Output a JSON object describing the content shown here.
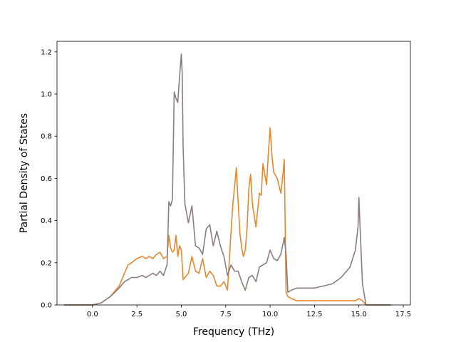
{
  "chart_data": {
    "type": "line",
    "title": "",
    "xlabel": "Frequency (THz)",
    "ylabel": "Partial Density of States",
    "xlim": [
      -2.0,
      17.9
    ],
    "ylim": [
      0.0,
      1.25
    ],
    "xticks": [
      0.0,
      2.5,
      5.0,
      7.5,
      10.0,
      12.5,
      15.0,
      17.5
    ],
    "xtick_labels": [
      "0.0",
      "2.5",
      "5.0",
      "7.5",
      "10.0",
      "12.5",
      "15.0",
      "17.5"
    ],
    "yticks": [
      0.0,
      0.2,
      0.4,
      0.6,
      0.8,
      1.0,
      1.2
    ],
    "ytick_labels": [
      "0.0",
      "0.2",
      "0.4",
      "0.6",
      "0.8",
      "1.0",
      "1.2"
    ],
    "grid": false,
    "legend": "none",
    "series": [
      {
        "color": "#e8862a",
        "x": [
          -1.6,
          0.0,
          0.5,
          1.0,
          1.5,
          1.8,
          2.0,
          2.2,
          2.5,
          2.8,
          3.0,
          3.2,
          3.4,
          3.6,
          3.8,
          4.0,
          4.2,
          4.3,
          4.4,
          4.5,
          4.6,
          4.7,
          4.8,
          4.9,
          5.0,
          5.1,
          5.2,
          5.4,
          5.6,
          5.8,
          6.0,
          6.2,
          6.4,
          6.6,
          6.8,
          7.0,
          7.2,
          7.4,
          7.6,
          7.8,
          7.9,
          8.0,
          8.1,
          8.2,
          8.3,
          8.4,
          8.5,
          8.6,
          8.7,
          8.8,
          8.9,
          9.0,
          9.2,
          9.4,
          9.5,
          9.6,
          9.8,
          9.9,
          10.0,
          10.1,
          10.2,
          10.4,
          10.6,
          10.7,
          10.8,
          10.9,
          11.0,
          11.2,
          11.5,
          12.0,
          12.5,
          13.0,
          13.5,
          14.0,
          14.5,
          14.8,
          15.0,
          15.2,
          15.4,
          16.8
        ],
        "y": [
          0.0,
          0.0,
          0.01,
          0.04,
          0.09,
          0.15,
          0.19,
          0.2,
          0.22,
          0.23,
          0.22,
          0.23,
          0.22,
          0.24,
          0.25,
          0.22,
          0.23,
          0.33,
          0.27,
          0.25,
          0.26,
          0.33,
          0.23,
          0.28,
          0.26,
          0.12,
          0.13,
          0.15,
          0.23,
          0.16,
          0.15,
          0.22,
          0.13,
          0.16,
          0.14,
          0.09,
          0.09,
          0.11,
          0.07,
          0.35,
          0.48,
          0.56,
          0.65,
          0.49,
          0.34,
          0.27,
          0.23,
          0.26,
          0.36,
          0.55,
          0.62,
          0.48,
          0.37,
          0.53,
          0.52,
          0.67,
          0.57,
          0.72,
          0.84,
          0.71,
          0.63,
          0.6,
          0.53,
          0.6,
          0.69,
          0.06,
          0.04,
          0.03,
          0.02,
          0.02,
          0.02,
          0.02,
          0.02,
          0.02,
          0.02,
          0.02,
          0.03,
          0.02,
          0.0,
          0.0
        ]
      },
      {
        "color": "#8a7d7d",
        "x": [
          -1.6,
          0.0,
          0.5,
          1.0,
          1.5,
          1.8,
          2.0,
          2.2,
          2.5,
          2.8,
          3.0,
          3.2,
          3.4,
          3.6,
          3.8,
          4.0,
          4.2,
          4.3,
          4.4,
          4.5,
          4.6,
          4.7,
          4.8,
          4.9,
          5.0,
          5.05,
          5.1,
          5.2,
          5.4,
          5.6,
          5.8,
          6.0,
          6.2,
          6.4,
          6.6,
          6.8,
          7.0,
          7.2,
          7.4,
          7.6,
          7.8,
          8.0,
          8.2,
          8.4,
          8.6,
          8.8,
          9.0,
          9.2,
          9.4,
          9.6,
          9.8,
          10.0,
          10.2,
          10.4,
          10.6,
          10.8,
          10.9,
          11.0,
          11.2,
          11.5,
          12.0,
          12.5,
          13.0,
          13.5,
          14.0,
          14.5,
          14.8,
          14.95,
          15.0,
          15.1,
          15.2,
          15.4,
          16.8
        ],
        "y": [
          0.0,
          0.0,
          0.01,
          0.04,
          0.08,
          0.11,
          0.12,
          0.13,
          0.13,
          0.14,
          0.13,
          0.14,
          0.15,
          0.14,
          0.16,
          0.14,
          0.19,
          0.49,
          0.47,
          0.5,
          1.01,
          0.98,
          0.96,
          1.08,
          1.19,
          1.1,
          0.75,
          0.48,
          0.39,
          0.47,
          0.28,
          0.27,
          0.24,
          0.36,
          0.38,
          0.28,
          0.35,
          0.28,
          0.23,
          0.14,
          0.19,
          0.16,
          0.16,
          0.11,
          0.07,
          0.13,
          0.14,
          0.11,
          0.18,
          0.19,
          0.2,
          0.26,
          0.22,
          0.21,
          0.24,
          0.32,
          0.24,
          0.06,
          0.07,
          0.08,
          0.08,
          0.08,
          0.09,
          0.1,
          0.13,
          0.18,
          0.26,
          0.37,
          0.51,
          0.3,
          0.1,
          0.0,
          0.0
        ]
      }
    ]
  }
}
